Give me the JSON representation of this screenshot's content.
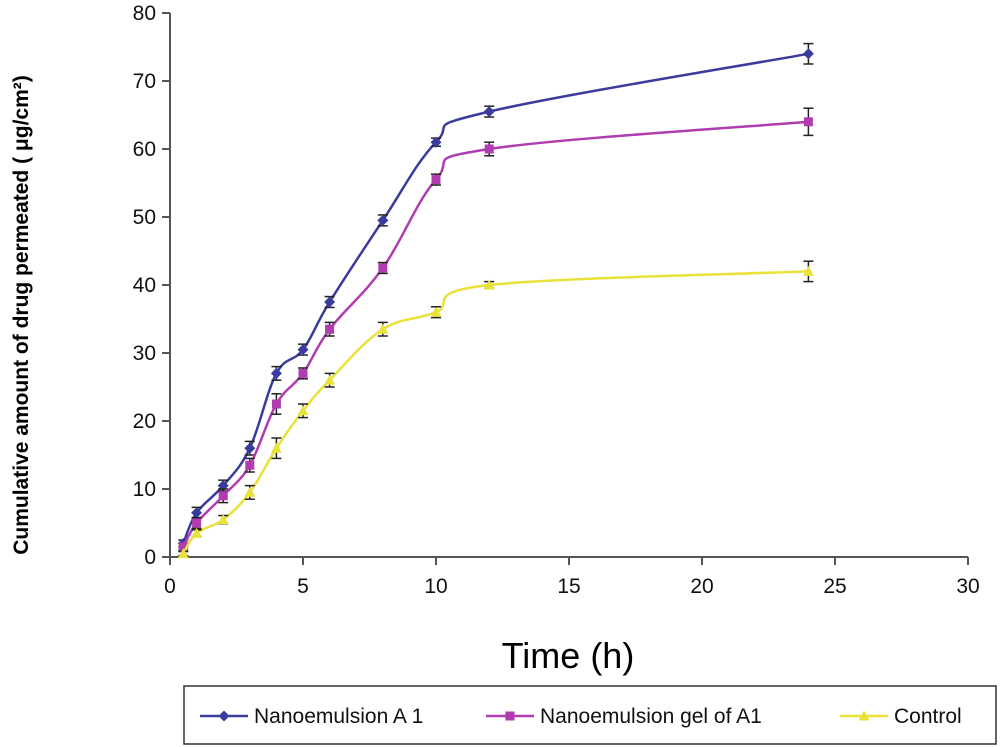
{
  "chart_data": {
    "type": "line",
    "title": "",
    "xlabel": "Time (h)",
    "ylabel": "Cumulative amount of drug permeated ( μg/cm²)",
    "xlim": [
      0,
      30
    ],
    "ylim": [
      0,
      80
    ],
    "xticks": [
      0,
      5,
      10,
      15,
      20,
      25,
      30
    ],
    "yticks": [
      0,
      10,
      20,
      30,
      40,
      50,
      60,
      70,
      80
    ],
    "grid": false,
    "legend_position": "bottom",
    "series": [
      {
        "name": "Nanoemulsion A 1",
        "color": "#3b3b9e",
        "marker": "diamond",
        "x": [
          0.5,
          1,
          2,
          3,
          4,
          5,
          6,
          8,
          10,
          12,
          24
        ],
        "y": [
          2,
          6.5,
          10.5,
          16,
          27,
          30.5,
          37.5,
          49.5,
          61,
          65.5,
          74
        ],
        "error": [
          0.5,
          0.8,
          0.8,
          1,
          1,
          0.8,
          0.8,
          0.8,
          0.6,
          0.8,
          1.5
        ]
      },
      {
        "name": "Nanoemulsion gel of A1",
        "color": "#b03cb0",
        "marker": "square",
        "x": [
          0.5,
          1,
          2,
          3,
          4,
          5,
          6,
          8,
          10,
          12,
          24
        ],
        "y": [
          1.5,
          5,
          9,
          13.5,
          22.5,
          27,
          33.5,
          42.5,
          55.5,
          60,
          64
        ],
        "error": [
          0.5,
          0.8,
          1,
          1,
          1.5,
          0.8,
          1,
          0.8,
          0.8,
          1,
          2
        ]
      },
      {
        "name": "Control",
        "color": "#e8e23a",
        "marker": "triangle",
        "x": [
          0.5,
          1,
          2,
          3,
          4,
          5,
          6,
          8,
          10,
          12,
          24
        ],
        "y": [
          0.5,
          3.5,
          5.5,
          9.5,
          16,
          21.5,
          26,
          33.5,
          36,
          40,
          42
        ],
        "error": [
          0.3,
          0.5,
          0.6,
          1,
          1.5,
          1,
          1,
          1,
          0.8,
          0.5,
          1.5
        ]
      }
    ]
  }
}
